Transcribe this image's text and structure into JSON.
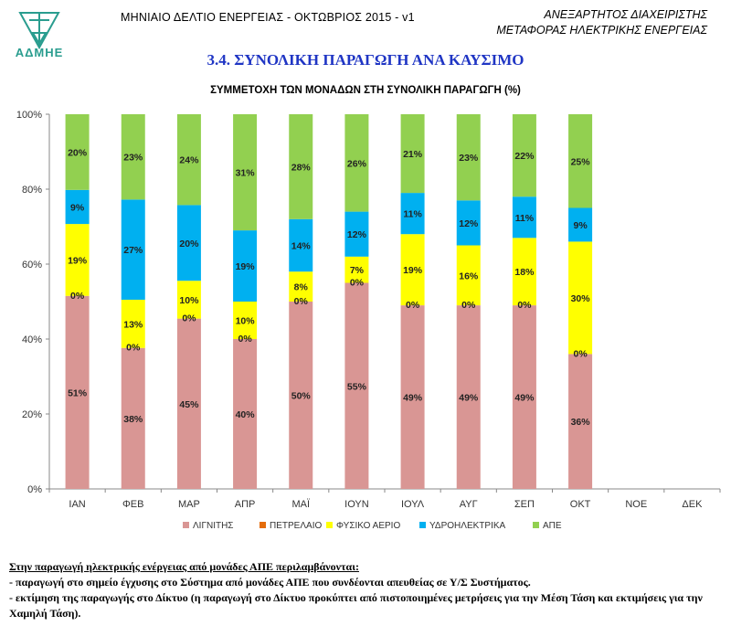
{
  "header": {
    "logo_text": "ΑΔΜΗΕ",
    "bulletin": "ΜΗΝΙΑΙΟ ΔΕΛΤΙΟ ΕΝΕΡΓΕΙΑΣ - ΟΚΤΩΒΡΙΟΣ 2015 - v1",
    "org_line1": "ΑΝΕΞΑΡΤΗΤΟΣ ΔΙΑΧΕΙΡΙΣΤΗΣ",
    "org_line2": "ΜΕΤΑΦΟΡΑΣ ΗΛΕΚΤΡΙΚΗΣ ΕΝΕΡΓΕΙΑΣ",
    "section_title": "3.4. ΣΥΝΟΛΙΚΗ ΠΑΡΑΓΩΓΗ ΑΝΑ ΚΑΥΣΙΜΟ"
  },
  "chart_data": {
    "type": "bar",
    "stacked": true,
    "title": "ΣΥΜΜΕΤΟΧΗ ΤΩΝ ΜΟΝΑΔΩΝ ΣΤΗ ΣΥΝΟΛΙΚΗ ΠΑΡΑΓΩΓΗ (%)",
    "categories": [
      "ΙΑΝ",
      "ΦΕΒ",
      "ΜΑΡ",
      "ΑΠΡ",
      "ΜΑΪ",
      "ΙΟΥΝ",
      "ΙΟΥΛ",
      "ΑΥΓ",
      "ΣΕΠ",
      "ΟΚΤ",
      "ΝΟΕ",
      "ΔΕΚ"
    ],
    "ylim": [
      0,
      100
    ],
    "yticks": [
      "0%",
      "20%",
      "40%",
      "60%",
      "80%",
      "100%"
    ],
    "legend_position": "bottom",
    "series": [
      {
        "name": "ΛΙΓΝΙΤΗΣ",
        "color": "#d99694",
        "values": [
          51,
          38,
          45,
          40,
          50,
          55,
          49,
          49,
          49,
          36,
          null,
          null
        ]
      },
      {
        "name": "ΠΕΤΡΕΛΑΙΟ",
        "color": "#e46c0a",
        "values": [
          0,
          0,
          0,
          0,
          0,
          0,
          0,
          0,
          0,
          0,
          null,
          null
        ]
      },
      {
        "name": "ΦΥΣΙΚΟ ΑΕΡΙΟ",
        "color": "#ffff00",
        "values": [
          19,
          13,
          10,
          10,
          8,
          7,
          19,
          16,
          18,
          30,
          null,
          null
        ]
      },
      {
        "name": "ΥΔΡΟΗΛΕΚΤΡΙΚΑ",
        "color": "#00b0f0",
        "values": [
          9,
          27,
          20,
          19,
          14,
          12,
          11,
          12,
          11,
          9,
          null,
          null
        ]
      },
      {
        "name": "ΑΠΕ",
        "color": "#92d050",
        "values": [
          20,
          23,
          24,
          31,
          28,
          26,
          21,
          23,
          22,
          25,
          null,
          null
        ]
      }
    ]
  },
  "notes": {
    "line1": "Στην παραγωγή ηλεκτρικής ενέργειας από μονάδες ΑΠΕ περιλαμβάνονται:",
    "line2": "- παραγωγή στο σημείο έγχυσης στο Σύστημα από μονάδες ΑΠΕ που συνδέονται απευθείας σε Υ/Σ Συστήματος.",
    "line3": "- εκτίμηση της παραγωγής στο Δίκτυο (η παραγωγή στο Δίκτυο προκύπτει από πιστοποιημένες μετρήσεις για την Μέση Τάση και εκτιμήσεις για την Χαμηλή Τάση)."
  }
}
